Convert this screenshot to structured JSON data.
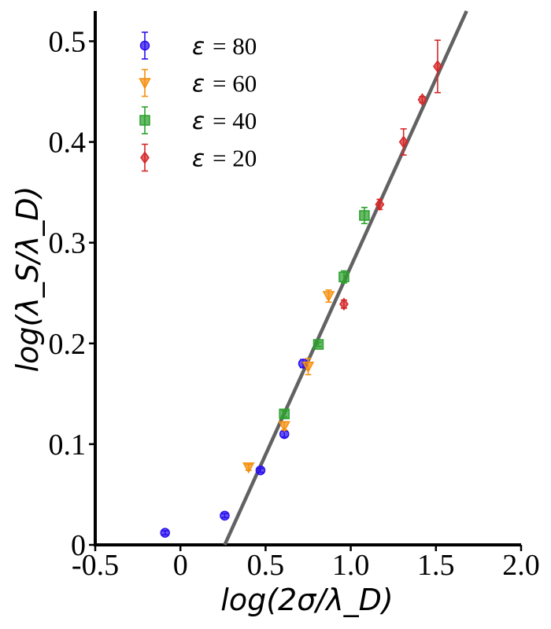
{
  "chart_data": {
    "type": "scatter",
    "title": "",
    "xlabel": "log(2σ/λ_D)",
    "ylabel": "log(λ_S/λ_D)",
    "xlim": [
      -0.5,
      2.0
    ],
    "ylim": [
      0,
      0.53
    ],
    "xticks": [
      -0.5,
      0,
      0.5,
      1.0,
      1.5,
      2.0
    ],
    "xtick_labels": [
      "-0.5",
      "0",
      "0.5",
      "1.0",
      "1.5",
      "2.0"
    ],
    "yticks": [
      0,
      0.1,
      0.2,
      0.3,
      0.4,
      0.5
    ],
    "ytick_labels": [
      "0",
      "0.1",
      "0.2",
      "0.3",
      "0.4",
      "0.5"
    ],
    "grid": false,
    "legend_position": "top-left",
    "series": [
      {
        "name": "ε = 80",
        "label_symbol": "ε",
        "label_value": "= 80",
        "marker": "circle",
        "color": "#2a10ee",
        "points": [
          {
            "x": -0.09,
            "y": 0.012,
            "err": 0.002
          },
          {
            "x": 0.26,
            "y": 0.029,
            "err": 0.002
          },
          {
            "x": 0.47,
            "y": 0.074,
            "err": 0.002
          },
          {
            "x": 0.61,
            "y": 0.11,
            "err": 0.003
          },
          {
            "x": 0.72,
            "y": 0.18,
            "err": 0.004
          }
        ]
      },
      {
        "name": "ε = 60",
        "label_symbol": "ε",
        "label_value": "= 60",
        "marker": "triangle-down",
        "color": "#f5900f",
        "points": [
          {
            "x": 0.4,
            "y": 0.077,
            "err": 0.003
          },
          {
            "x": 0.61,
            "y": 0.118,
            "err": 0.004
          },
          {
            "x": 0.75,
            "y": 0.177,
            "err": 0.008
          },
          {
            "x": 0.87,
            "y": 0.247,
            "err": 0.006
          }
        ]
      },
      {
        "name": "ε = 40",
        "label_symbol": "ε",
        "label_value": "= 40",
        "marker": "square",
        "color": "#2ca02c",
        "points": [
          {
            "x": 0.61,
            "y": 0.13,
            "err": 0.003
          },
          {
            "x": 0.81,
            "y": 0.199,
            "err": 0.002
          },
          {
            "x": 0.96,
            "y": 0.266,
            "err": 0.006
          },
          {
            "x": 1.08,
            "y": 0.327,
            "err": 0.008
          }
        ]
      },
      {
        "name": "ε = 20",
        "label_symbol": "ε",
        "label_value": "= 20",
        "marker": "diamond",
        "color": "#d62728",
        "points": [
          {
            "x": 0.96,
            "y": 0.239,
            "err": 0.004
          },
          {
            "x": 1.17,
            "y": 0.338,
            "err": 0.005
          },
          {
            "x": 1.31,
            "y": 0.4,
            "err": 0.013
          },
          {
            "x": 1.42,
            "y": 0.442,
            "err": 0.003
          },
          {
            "x": 1.51,
            "y": 0.475,
            "err": 0.026
          }
        ]
      }
    ],
    "fit_line": {
      "color": "#626262",
      "points": [
        {
          "x": 0.26,
          "y": 0.0
        },
        {
          "x": 1.68,
          "y": 0.53
        }
      ]
    }
  }
}
